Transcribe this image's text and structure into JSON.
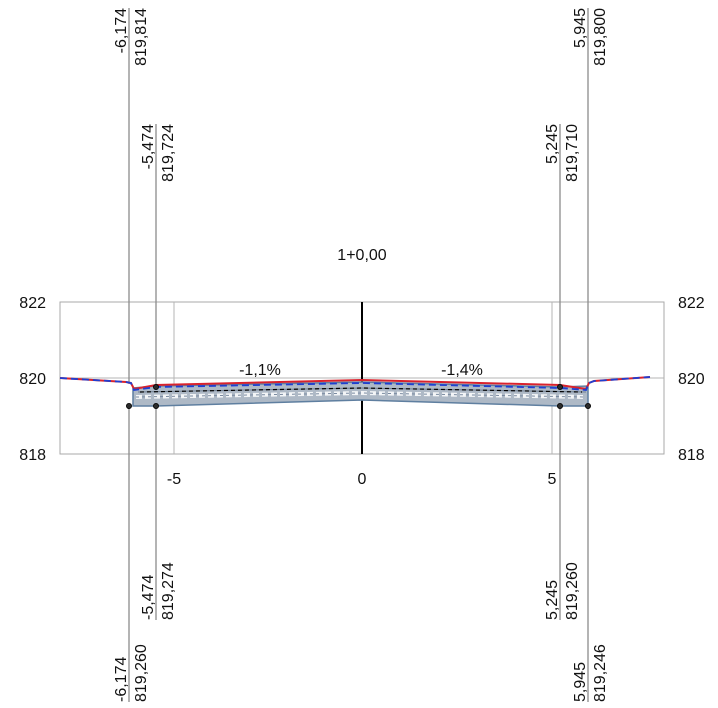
{
  "station": "1+0,00",
  "elevation_axis": {
    "ticks": [
      "822",
      "820",
      "818"
    ],
    "values": [
      822,
      820,
      818
    ]
  },
  "offset_axis": {
    "ticks": [
      "-5",
      "0",
      "5"
    ],
    "values": [
      -5,
      0,
      5
    ]
  },
  "slopes": {
    "left": "-1,1%",
    "right": "-1,4%"
  },
  "top_labels": [
    {
      "offset": -6.174,
      "offset_label": "-6,174",
      "elev_label": "819,814"
    },
    {
      "offset": -5.474,
      "offset_label": "-5,474",
      "elev_label": "819,724"
    },
    {
      "offset": 5.245,
      "offset_label": "5,245",
      "elev_label": "819,710"
    },
    {
      "offset": 5.945,
      "offset_label": "5,945",
      "elev_label": "819,800"
    }
  ],
  "bottom_labels": [
    {
      "offset": -5.474,
      "offset_label": "-5,474",
      "elev_label": "819,274"
    },
    {
      "offset": -6.174,
      "offset_label": "-6,174",
      "elev_label": "819,260"
    },
    {
      "offset": 5.245,
      "offset_label": "5,245",
      "elev_label": "819,260"
    },
    {
      "offset": 5.945,
      "offset_label": "5,945",
      "elev_label": "819,246"
    }
  ],
  "colors": {
    "grid": "#a9a9a9",
    "terrain": "#d9232d",
    "design": "#1f3fd1",
    "layer_fill": "#aeb9c6",
    "layer_edge": "#5f7fa0"
  }
}
